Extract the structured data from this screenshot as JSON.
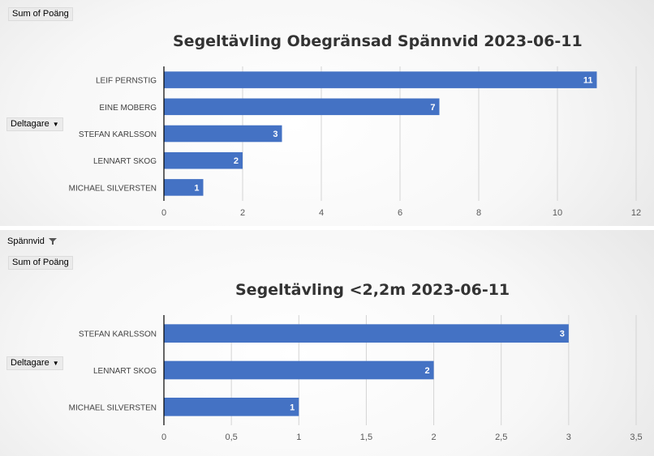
{
  "chart_data": [
    {
      "type": "bar",
      "orientation": "horizontal",
      "title": "Segeltävling Obegränsad Spännvid 2023-06-11",
      "categories": [
        "LEIF PERNSTIG",
        "EINE MOBERG",
        "STEFAN KARLSSON",
        "LENNART SKOG",
        "MICHAEL SILVERSTEN"
      ],
      "values": [
        11,
        7,
        3,
        2,
        1
      ],
      "xlim": [
        0,
        12
      ],
      "xticks": [
        "0",
        "2",
        "4",
        "6",
        "8",
        "10",
        "12"
      ],
      "grid": true,
      "legend": "none",
      "bar_color": "#4472c4"
    },
    {
      "type": "bar",
      "orientation": "horizontal",
      "title": "Segeltävling <2,2m 2023-06-11",
      "categories": [
        "STEFAN KARLSSON",
        "LENNART SKOG",
        "MICHAEL SILVERSTEN"
      ],
      "values": [
        3,
        2,
        1
      ],
      "xlim": [
        0,
        3.5
      ],
      "xticks": [
        "0",
        "0,5",
        "1",
        "1,5",
        "2",
        "2,5",
        "3",
        "3,5"
      ],
      "grid": true,
      "legend": "none",
      "bar_color": "#4472c4"
    }
  ],
  "field_buttons": {
    "top_value": "Sum of Poäng",
    "top_axis": "Deltagare",
    "bottom_filter": "Spännvid",
    "bottom_value": "Sum of Poäng",
    "bottom_axis": "Deltagare"
  },
  "icons": {
    "dropdown": "chevron-down-icon",
    "filter": "filter-icon"
  }
}
